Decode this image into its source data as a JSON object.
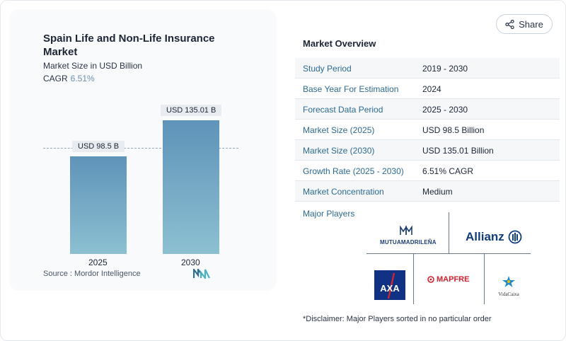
{
  "header": {
    "share_label": "Share"
  },
  "chart": {
    "title": "Spain Life and Non-Life Insurance Market",
    "subtitle": "Market Size in USD Billion",
    "cagr_label": "CAGR",
    "cagr_value": "6.51%",
    "source_label": "Source :",
    "source_value": "Mordor Intelligence"
  },
  "chart_data": {
    "type": "bar",
    "title": "Spain Life and Non-Life Insurance Market",
    "ylabel": "Market Size in USD Billion",
    "categories": [
      "2025",
      "2030"
    ],
    "values": [
      98.5,
      135.01
    ],
    "data_labels": [
      "USD 98.5 B",
      "USD 135.01 B"
    ],
    "ylim": [
      0,
      135.01
    ],
    "grid": false,
    "reference_line": 98.5,
    "colors": {
      "bar_top": "#5f93b9",
      "bar_bottom": "#8cc0d1"
    }
  },
  "overview": {
    "title": "Market Overview",
    "rows": [
      {
        "key": "Study Period",
        "value": "2019 - 2030"
      },
      {
        "key": "Base Year For Estimation",
        "value": "2024"
      },
      {
        "key": "Forecast Data Period",
        "value": "2025 - 2030"
      },
      {
        "key": "Market Size (2025)",
        "value": "USD 98.5 Billion"
      },
      {
        "key": "Market Size (2030)",
        "value": "USD 135.01 Billion"
      },
      {
        "key": "Growth Rate (2025 - 2030)",
        "value": "6.51% CAGR"
      },
      {
        "key": "Market Concentration",
        "value": "Medium"
      }
    ],
    "players_label": "Major Players",
    "players": [
      {
        "name": "MUTUAMADRILEÑA",
        "icon": "mutua-madrilena-logo"
      },
      {
        "name": "Allianz",
        "icon": "allianz-logo"
      },
      {
        "name": "AXA",
        "icon": "axa-logo"
      },
      {
        "name": "MAPFRE",
        "icon": "mapfre-logo"
      },
      {
        "name": "VidaCaixa",
        "icon": "vidacaixa-logo"
      }
    ]
  },
  "disclaimer": "*Disclaimer: Major Players sorted in no particular order"
}
